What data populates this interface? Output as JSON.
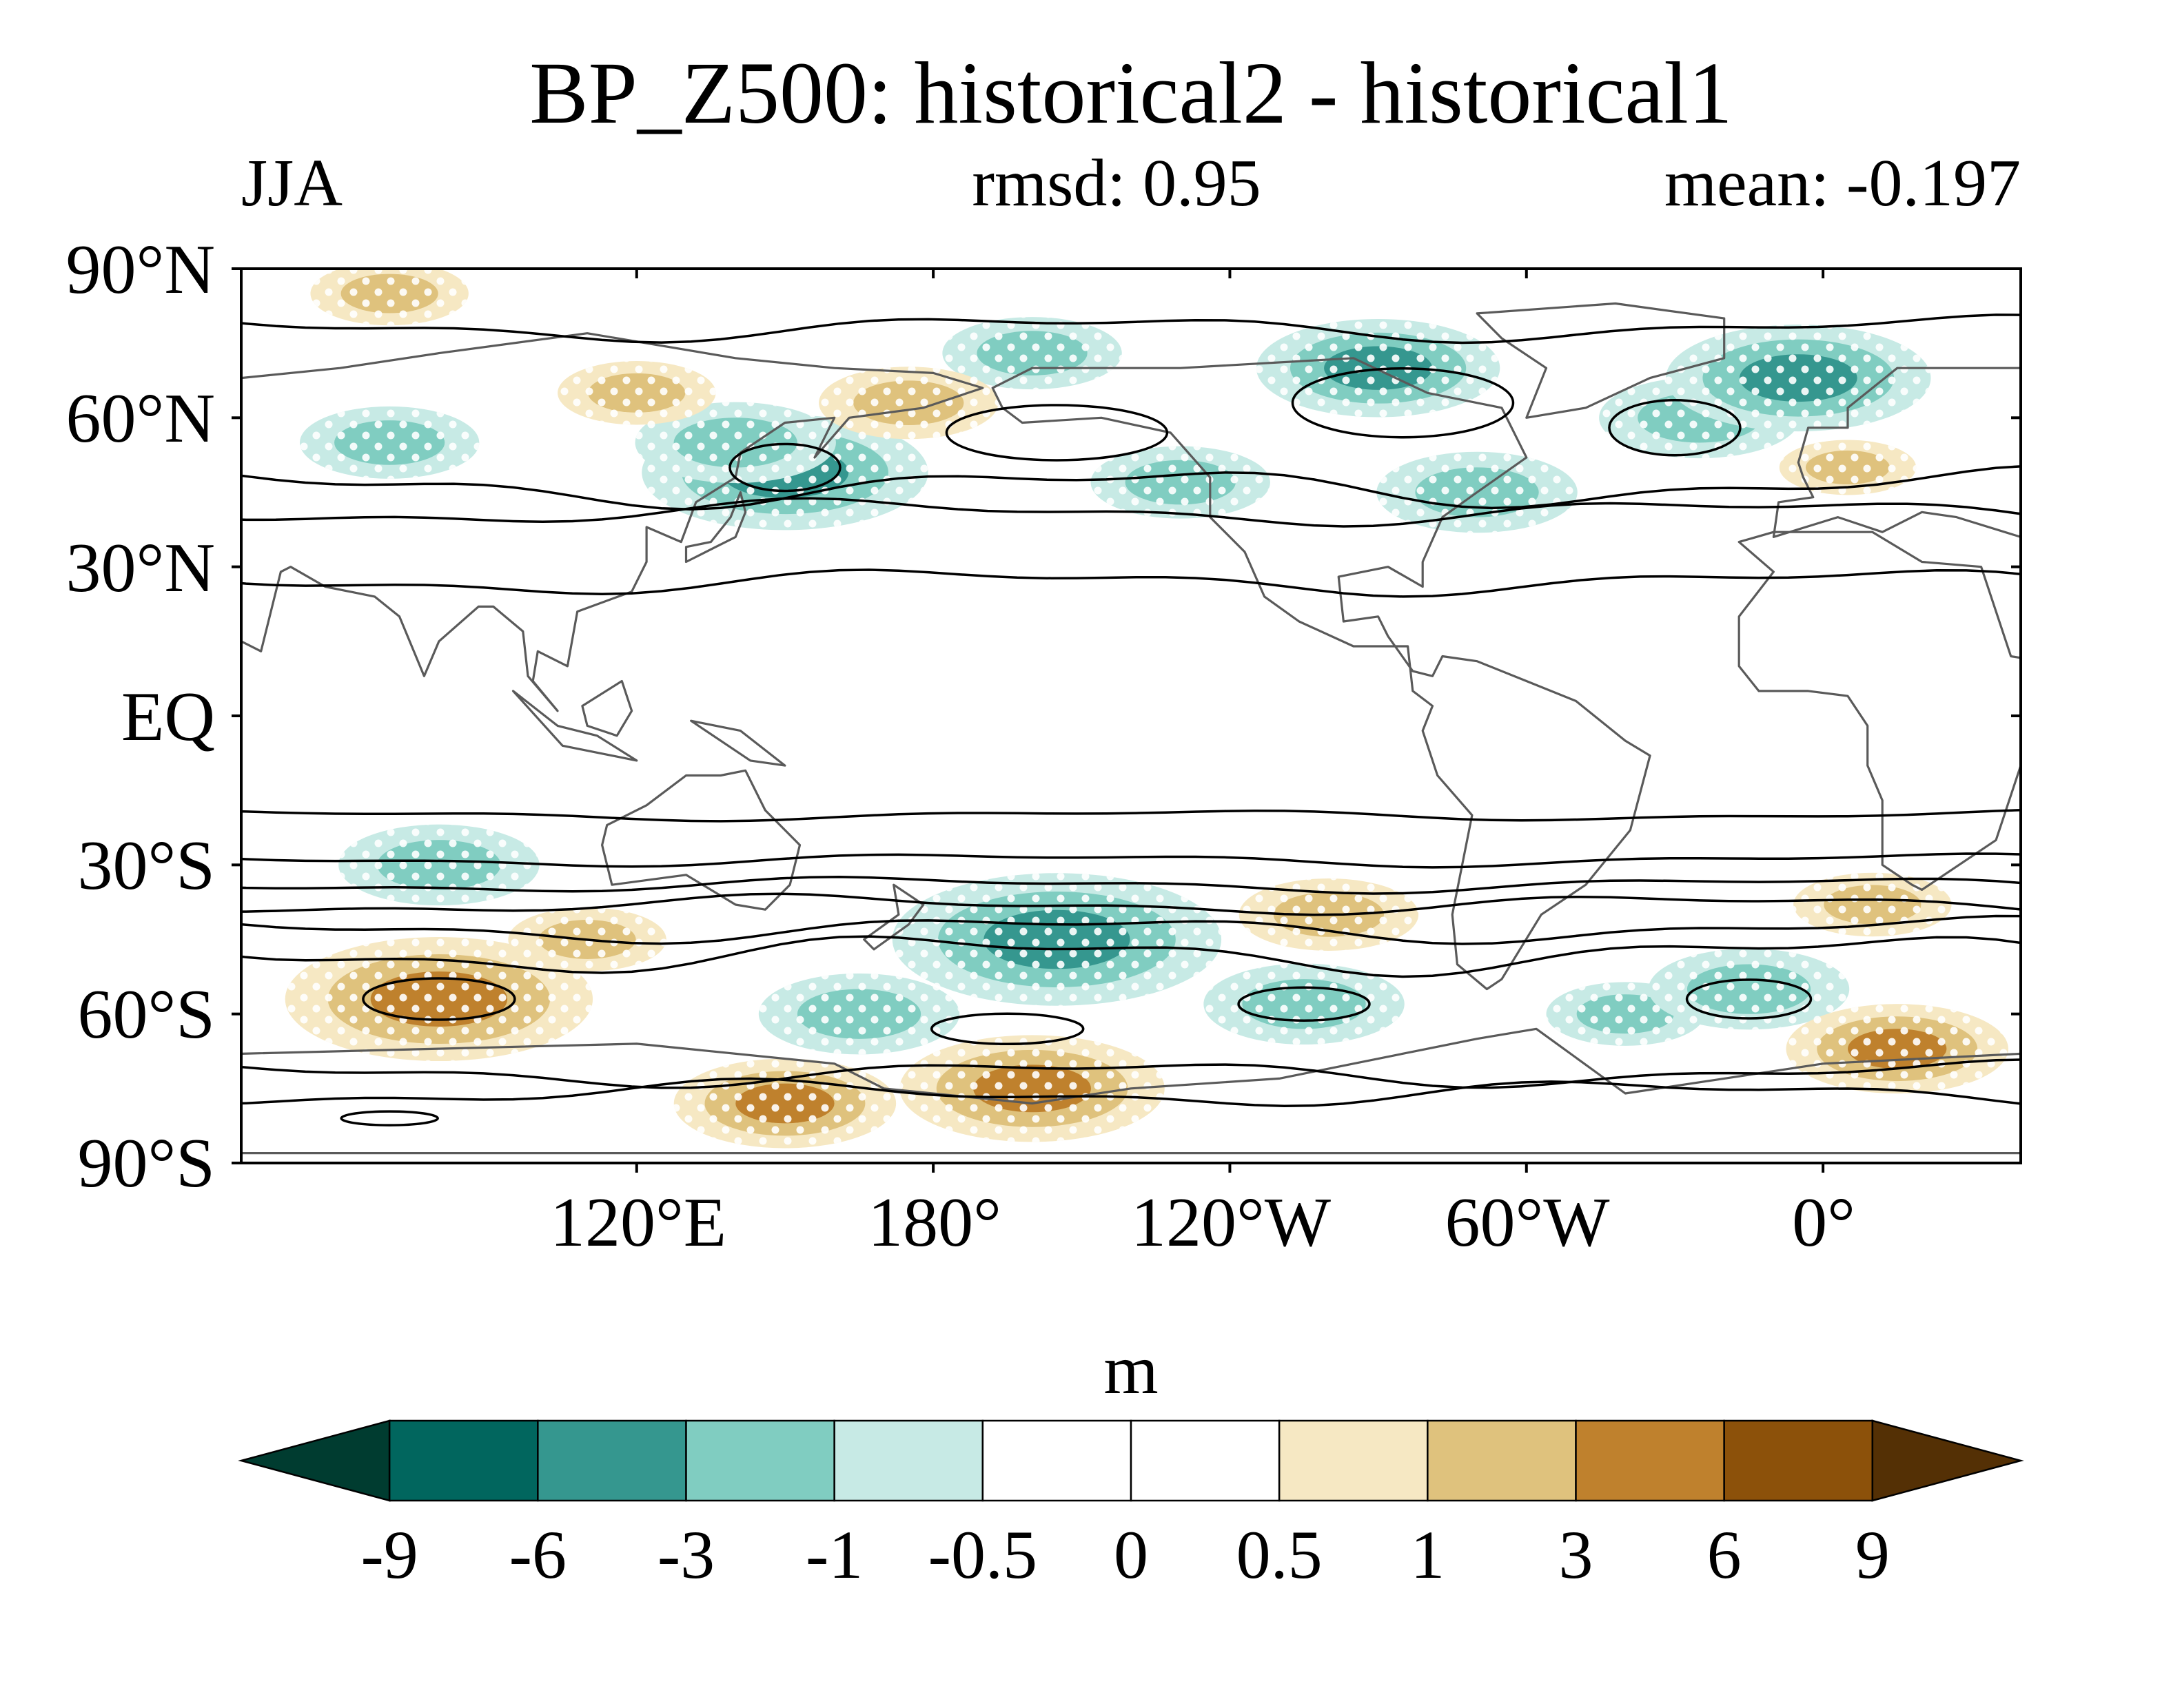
{
  "title": "BP_Z500: historical2 - historical1",
  "season": "JJA",
  "rmsd_label": "rmsd: 0.95",
  "mean_label": "mean: -0.197",
  "colorbar": {
    "units": "m",
    "tick_labels": [
      "-9",
      "-6",
      "-3",
      "-1",
      "-0.5",
      "0",
      "0.5",
      "1",
      "3",
      "6",
      "9"
    ],
    "colors": [
      "#003c30",
      "#01665e",
      "#35978f",
      "#80cdc1",
      "#c7eae5",
      "#ffffff",
      "#ffffff",
      "#f6e8c3",
      "#dfc27d",
      "#bf812d",
      "#8c510a",
      "#543005"
    ]
  },
  "map": {
    "lat_labels": [
      "90°N",
      "60°N",
      "30°N",
      "EQ",
      "30°S",
      "60°S",
      "90°S"
    ],
    "lon_labels": [
      "120°E",
      "180°",
      "120°W",
      "60°W",
      "0°"
    ],
    "lat_values": [
      90,
      60,
      30,
      0,
      -30,
      -60,
      -90
    ],
    "lon_values": [
      120,
      180,
      240,
      300,
      360
    ],
    "lon_range": [
      40,
      400
    ],
    "lat_range": [
      -90,
      90
    ],
    "stippling": "white dots mark significant differences",
    "colors": {
      "coast": "#5a5a5a",
      "contour": "#000000"
    }
  },
  "chart_data": {
    "type": "heatmap",
    "title": "BP_Z500: historical2 - historical1",
    "subtitle_left": "JJA",
    "subtitle_center": "rmsd: 0.95",
    "subtitle_right": "mean: -0.197",
    "units": "m",
    "levels": [
      -9,
      -6,
      -3,
      -1,
      -0.5,
      0,
      0.5,
      1,
      3,
      6,
      9
    ],
    "xlim": [
      40,
      400
    ],
    "ylim": [
      -90,
      90
    ],
    "anomalies": [
      {
        "lon": 150,
        "lat": 49,
        "value": -4.5
      },
      {
        "lon": 140,
        "lat": 55,
        "value": -2.5
      },
      {
        "lon": 70,
        "lat": 55,
        "value": -2.0
      },
      {
        "lon": 200,
        "lat": 73,
        "value": -2.0
      },
      {
        "lon": 270,
        "lat": 70,
        "value": -3.5
      },
      {
        "lon": 335,
        "lat": 60,
        "value": -2.5
      },
      {
        "lon": 355,
        "lat": 68,
        "value": -4.0
      },
      {
        "lon": 290,
        "lat": 45,
        "value": -2.5
      },
      {
        "lon": 175,
        "lat": 63,
        "value": 2.0
      },
      {
        "lon": 120,
        "lat": 65,
        "value": 1.5
      },
      {
        "lon": 70,
        "lat": 85,
        "value": 1.5
      },
      {
        "lon": 230,
        "lat": 47,
        "value": -2.0
      },
      {
        "lon": 365,
        "lat": 50,
        "value": 1.0
      },
      {
        "lon": 80,
        "lat": -30,
        "value": -2.5
      },
      {
        "lon": 205,
        "lat": -45,
        "value": -5.5
      },
      {
        "lon": 165,
        "lat": -60,
        "value": -2.5
      },
      {
        "lon": 255,
        "lat": -58,
        "value": -2.5
      },
      {
        "lon": 320,
        "lat": -60,
        "value": -1.5
      },
      {
        "lon": 345,
        "lat": -55,
        "value": -2.5
      },
      {
        "lon": 260,
        "lat": -40,
        "value": 2.0
      },
      {
        "lon": 370,
        "lat": -38,
        "value": 1.5
      },
      {
        "lon": 80,
        "lat": -57,
        "value": 5.0
      },
      {
        "lon": 200,
        "lat": -75,
        "value": 4.0
      },
      {
        "lon": 150,
        "lat": -78,
        "value": 3.0
      },
      {
        "lon": 375,
        "lat": -67,
        "value": 3.0
      },
      {
        "lon": 110,
        "lat": -45,
        "value": 1.5
      }
    ]
  }
}
